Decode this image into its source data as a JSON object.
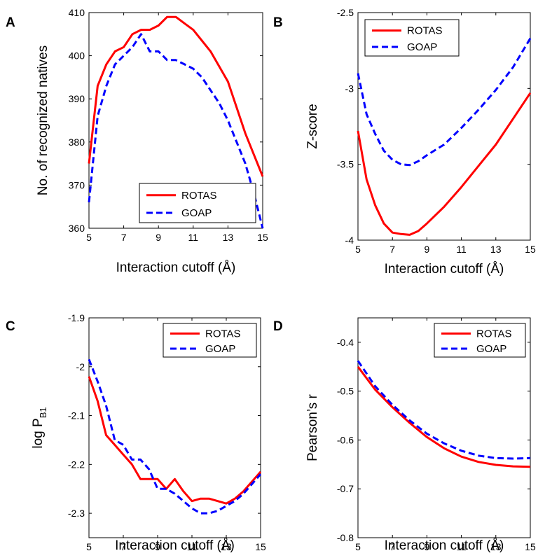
{
  "chart_data": [
    {
      "panel": "A",
      "type": "line",
      "xlabel": "Interaction cutoff (Å)",
      "ylabel": "No. of recognized natives",
      "xlim": [
        5,
        15
      ],
      "ylim": [
        360,
        410
      ],
      "xticks": [
        "5",
        "7",
        "9",
        "11",
        "13",
        "15"
      ],
      "yticks": [
        "360",
        "370",
        "380",
        "390",
        "400",
        "410"
      ],
      "legend_position": "bottom-right",
      "series": [
        {
          "name": "ROTAS",
          "color": "#ff0000",
          "style": "solid",
          "x": [
            5,
            5.5,
            6,
            6.5,
            7,
            7.5,
            8,
            8.5,
            9,
            9.5,
            10,
            10.5,
            11,
            11.5,
            12,
            12.5,
            13,
            13.5,
            14,
            14.5,
            15
          ],
          "y": [
            375,
            393,
            398,
            401,
            402,
            405,
            406,
            406,
            407,
            409,
            409,
            407.5,
            406,
            403.5,
            401,
            397.5,
            394,
            388,
            382,
            377,
            372
          ]
        },
        {
          "name": "GOAP",
          "color": "#0000ff",
          "style": "dashed",
          "x": [
            5,
            5.5,
            6,
            6.5,
            7,
            7.5,
            8,
            8.5,
            9,
            9.5,
            10,
            10.5,
            11,
            11.5,
            12,
            12.5,
            13,
            13.5,
            14,
            14.5,
            15
          ],
          "y": [
            366,
            386,
            393,
            398,
            400,
            402,
            405,
            401,
            401,
            399,
            399,
            398,
            397,
            395,
            392,
            389,
            385,
            380,
            375,
            368,
            360
          ]
        }
      ]
    },
    {
      "panel": "B",
      "type": "line",
      "xlabel": "Interaction cutoff (Å)",
      "ylabel": "Z-score",
      "xlim": [
        5,
        15
      ],
      "ylim": [
        -4,
        -2.5
      ],
      "xticks": [
        "5",
        "7",
        "9",
        "11",
        "13",
        "15"
      ],
      "yticks": [
        "-4",
        "-3.5",
        "-3",
        "-2.5"
      ],
      "legend_position": "top-left",
      "series": [
        {
          "name": "ROTAS",
          "color": "#ff0000",
          "style": "solid",
          "x": [
            5,
            5.5,
            6,
            6.5,
            7,
            7.5,
            8,
            8.5,
            9,
            10,
            11,
            12,
            13,
            14,
            15
          ],
          "y": [
            -3.28,
            -3.6,
            -3.77,
            -3.89,
            -3.95,
            -3.96,
            -3.965,
            -3.94,
            -3.89,
            -3.78,
            -3.65,
            -3.51,
            -3.37,
            -3.2,
            -3.03
          ]
        },
        {
          "name": "GOAP",
          "color": "#0000ff",
          "style": "dashed",
          "x": [
            5,
            5.5,
            6,
            6.5,
            7,
            7.5,
            8,
            8.5,
            9,
            10,
            11,
            12,
            13,
            14,
            15
          ],
          "y": [
            -2.9,
            -3.17,
            -3.3,
            -3.41,
            -3.47,
            -3.5,
            -3.505,
            -3.48,
            -3.44,
            -3.37,
            -3.26,
            -3.14,
            -3.01,
            -2.86,
            -2.67
          ]
        }
      ]
    },
    {
      "panel": "C",
      "type": "line",
      "xlabel": "Interaction cutoff (Å)",
      "ylabel_main": "log P",
      "ylabel_sub": "B1",
      "xlim": [
        5,
        15
      ],
      "ylim": [
        -2.35,
        -1.9
      ],
      "xticks": [
        "5",
        "7",
        "9",
        "11",
        "13",
        "15"
      ],
      "yticks": [
        "-2.3",
        "-2.2",
        "-2.1",
        "-2",
        "-1.9"
      ],
      "legend_position": "top-right",
      "series": [
        {
          "name": "ROTAS",
          "color": "#ff0000",
          "style": "solid",
          "x": [
            5,
            5.5,
            6,
            6.5,
            7,
            7.5,
            8,
            8.5,
            9,
            9.5,
            10,
            10.5,
            11,
            11.5,
            12,
            12.5,
            13,
            13.5,
            14,
            14.5,
            15
          ],
          "y": [
            -2.02,
            -2.07,
            -2.14,
            -2.16,
            -2.18,
            -2.2,
            -2.23,
            -2.23,
            -2.23,
            -2.25,
            -2.23,
            -2.255,
            -2.275,
            -2.27,
            -2.27,
            -2.275,
            -2.28,
            -2.27,
            -2.255,
            -2.235,
            -2.215
          ]
        },
        {
          "name": "GOAP",
          "color": "#0000ff",
          "style": "dashed",
          "x": [
            5,
            5.5,
            6,
            6.5,
            7,
            7.5,
            8,
            8.5,
            9,
            9.5,
            10,
            10.5,
            11,
            11.5,
            12,
            12.5,
            13,
            13.5,
            14,
            14.5,
            15
          ],
          "y": [
            -1.985,
            -2.03,
            -2.08,
            -2.15,
            -2.16,
            -2.19,
            -2.19,
            -2.21,
            -2.25,
            -2.25,
            -2.26,
            -2.275,
            -2.29,
            -2.3,
            -2.3,
            -2.295,
            -2.285,
            -2.275,
            -2.26,
            -2.24,
            -2.22
          ]
        }
      ]
    },
    {
      "panel": "D",
      "type": "line",
      "xlabel": "Interaction cutoff (Å)",
      "ylabel": "Pearson’s r",
      "xlim": [
        5,
        15
      ],
      "ylim": [
        -0.8,
        -0.35
      ],
      "xticks": [
        "5",
        "7",
        "9",
        "11",
        "13",
        "15"
      ],
      "yticks": [
        "-0.8",
        "-0.7",
        "-0.6",
        "-0.5",
        "-0.4"
      ],
      "legend_position": "top-right",
      "series": [
        {
          "name": "ROTAS",
          "color": "#ff0000",
          "style": "solid",
          "x": [
            5,
            6,
            7,
            8,
            9,
            10,
            11,
            12,
            13,
            14,
            15
          ],
          "y": [
            -0.45,
            -0.497,
            -0.533,
            -0.565,
            -0.594,
            -0.617,
            -0.634,
            -0.645,
            -0.651,
            -0.654,
            -0.655
          ]
        },
        {
          "name": "GOAP",
          "color": "#0000ff",
          "style": "dashed",
          "x": [
            5,
            6,
            7,
            8,
            9,
            10,
            11,
            12,
            13,
            14,
            15
          ],
          "y": [
            -0.438,
            -0.49,
            -0.528,
            -0.56,
            -0.587,
            -0.607,
            -0.622,
            -0.632,
            -0.637,
            -0.638,
            -0.637
          ]
        }
      ]
    }
  ]
}
